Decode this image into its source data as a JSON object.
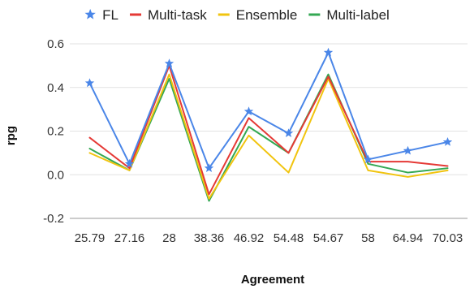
{
  "chart_data": {
    "type": "line",
    "title": "",
    "xlabel": "Agreement",
    "ylabel": "rpg",
    "categories": [
      "25.79",
      "27.16",
      "28",
      "38.36",
      "46.92",
      "54.48",
      "54.67",
      "58",
      "64.94",
      "70.03"
    ],
    "ylim": [
      -0.2,
      0.6
    ],
    "yticks": [
      "-0.2",
      "0.0",
      "0.2",
      "0.4",
      "0.6"
    ],
    "grid": "horizontal",
    "legend_position": "top",
    "series": [
      {
        "name": "FL",
        "color": "#4a86e8",
        "marker": "star",
        "values": [
          0.42,
          0.05,
          0.51,
          0.03,
          0.29,
          0.19,
          0.56,
          0.07,
          0.11,
          0.15
        ]
      },
      {
        "name": "Multi-task",
        "color": "#e53935",
        "marker": "line",
        "values": [
          0.17,
          0.03,
          0.5,
          -0.09,
          0.26,
          0.1,
          0.45,
          0.06,
          0.06,
          0.04
        ]
      },
      {
        "name": "Ensemble",
        "color": "#f1c40f",
        "marker": "line",
        "values": [
          0.1,
          0.02,
          0.46,
          -0.11,
          0.18,
          0.01,
          0.44,
          0.02,
          -0.01,
          0.02
        ]
      },
      {
        "name": "Multi-label",
        "color": "#34a853",
        "marker": "line",
        "values": [
          0.12,
          0.02,
          0.44,
          -0.12,
          0.22,
          0.1,
          0.46,
          0.05,
          0.01,
          0.03
        ]
      }
    ]
  }
}
